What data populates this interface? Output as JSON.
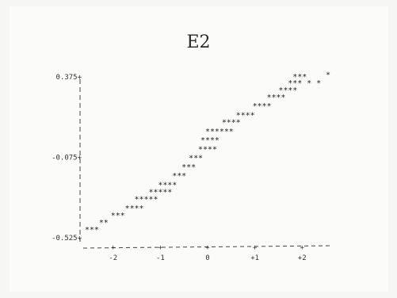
{
  "chart_data": {
    "type": "scatter",
    "title": "E2",
    "marker": "*",
    "xlabel": "",
    "ylabel": "",
    "xlim": [
      -2.6,
      2.6
    ],
    "ylim": [
      -0.525,
      0.42
    ],
    "xticks": [
      {
        "value": -2,
        "label": "-2"
      },
      {
        "value": -1,
        "label": "-1"
      },
      {
        "value": 0,
        "label": "0"
      },
      {
        "value": 1,
        "label": "+1"
      },
      {
        "value": 2,
        "label": "+2"
      }
    ],
    "yticks": [
      {
        "value": 0.375,
        "label": "0.375+"
      },
      {
        "value": -0.075,
        "label": "-0.075+"
      },
      {
        "value": -0.525,
        "label": "-0.525+"
      }
    ],
    "grid": false,
    "points": [
      {
        "x": -2.55,
        "y": -0.48
      },
      {
        "x": -2.45,
        "y": -0.48
      },
      {
        "x": -2.35,
        "y": -0.48
      },
      {
        "x": -2.25,
        "y": -0.44
      },
      {
        "x": -2.15,
        "y": -0.44
      },
      {
        "x": -2.0,
        "y": -0.4
      },
      {
        "x": -1.9,
        "y": -0.4
      },
      {
        "x": -1.8,
        "y": -0.4
      },
      {
        "x": -1.7,
        "y": -0.36
      },
      {
        "x": -1.6,
        "y": -0.36
      },
      {
        "x": -1.5,
        "y": -0.36
      },
      {
        "x": -1.4,
        "y": -0.36
      },
      {
        "x": -1.5,
        "y": -0.31
      },
      {
        "x": -1.4,
        "y": -0.31
      },
      {
        "x": -1.3,
        "y": -0.31
      },
      {
        "x": -1.2,
        "y": -0.31
      },
      {
        "x": -1.1,
        "y": -0.31
      },
      {
        "x": -1.2,
        "y": -0.27
      },
      {
        "x": -1.1,
        "y": -0.27
      },
      {
        "x": -1.0,
        "y": -0.27
      },
      {
        "x": -0.9,
        "y": -0.27
      },
      {
        "x": -0.8,
        "y": -0.27
      },
      {
        "x": -1.0,
        "y": -0.23
      },
      {
        "x": -0.9,
        "y": -0.23
      },
      {
        "x": -0.8,
        "y": -0.23
      },
      {
        "x": -0.7,
        "y": -0.23
      },
      {
        "x": -0.7,
        "y": -0.18
      },
      {
        "x": -0.6,
        "y": -0.18
      },
      {
        "x": -0.5,
        "y": -0.18
      },
      {
        "x": -0.5,
        "y": -0.13
      },
      {
        "x": -0.4,
        "y": -0.13
      },
      {
        "x": -0.3,
        "y": -0.13
      },
      {
        "x": -0.35,
        "y": -0.08
      },
      {
        "x": -0.25,
        "y": -0.08
      },
      {
        "x": -0.15,
        "y": -0.08
      },
      {
        "x": -0.15,
        "y": -0.03
      },
      {
        "x": -0.05,
        "y": -0.03
      },
      {
        "x": 0.05,
        "y": -0.03
      },
      {
        "x": 0.15,
        "y": -0.03
      },
      {
        "x": -0.1,
        "y": 0.02
      },
      {
        "x": 0.0,
        "y": 0.02
      },
      {
        "x": 0.1,
        "y": 0.02
      },
      {
        "x": 0.2,
        "y": 0.02
      },
      {
        "x": 0.0,
        "y": 0.07
      },
      {
        "x": 0.1,
        "y": 0.07
      },
      {
        "x": 0.2,
        "y": 0.07
      },
      {
        "x": 0.3,
        "y": 0.07
      },
      {
        "x": 0.4,
        "y": 0.07
      },
      {
        "x": 0.5,
        "y": 0.07
      },
      {
        "x": 0.35,
        "y": 0.12
      },
      {
        "x": 0.45,
        "y": 0.12
      },
      {
        "x": 0.55,
        "y": 0.12
      },
      {
        "x": 0.65,
        "y": 0.12
      },
      {
        "x": 0.65,
        "y": 0.16
      },
      {
        "x": 0.75,
        "y": 0.16
      },
      {
        "x": 0.85,
        "y": 0.16
      },
      {
        "x": 0.95,
        "y": 0.16
      },
      {
        "x": 1.0,
        "y": 0.21
      },
      {
        "x": 1.1,
        "y": 0.21
      },
      {
        "x": 1.2,
        "y": 0.21
      },
      {
        "x": 1.3,
        "y": 0.21
      },
      {
        "x": 1.3,
        "y": 0.26
      },
      {
        "x": 1.4,
        "y": 0.26
      },
      {
        "x": 1.5,
        "y": 0.26
      },
      {
        "x": 1.6,
        "y": 0.26
      },
      {
        "x": 1.55,
        "y": 0.3
      },
      {
        "x": 1.65,
        "y": 0.3
      },
      {
        "x": 1.75,
        "y": 0.3
      },
      {
        "x": 1.85,
        "y": 0.3
      },
      {
        "x": 1.75,
        "y": 0.34
      },
      {
        "x": 1.85,
        "y": 0.34
      },
      {
        "x": 1.95,
        "y": 0.34
      },
      {
        "x": 2.15,
        "y": 0.34
      },
      {
        "x": 2.35,
        "y": 0.34
      },
      {
        "x": 1.85,
        "y": 0.375
      },
      {
        "x": 1.95,
        "y": 0.375
      },
      {
        "x": 2.05,
        "y": 0.375
      },
      {
        "x": 2.55,
        "y": 0.385
      }
    ]
  }
}
